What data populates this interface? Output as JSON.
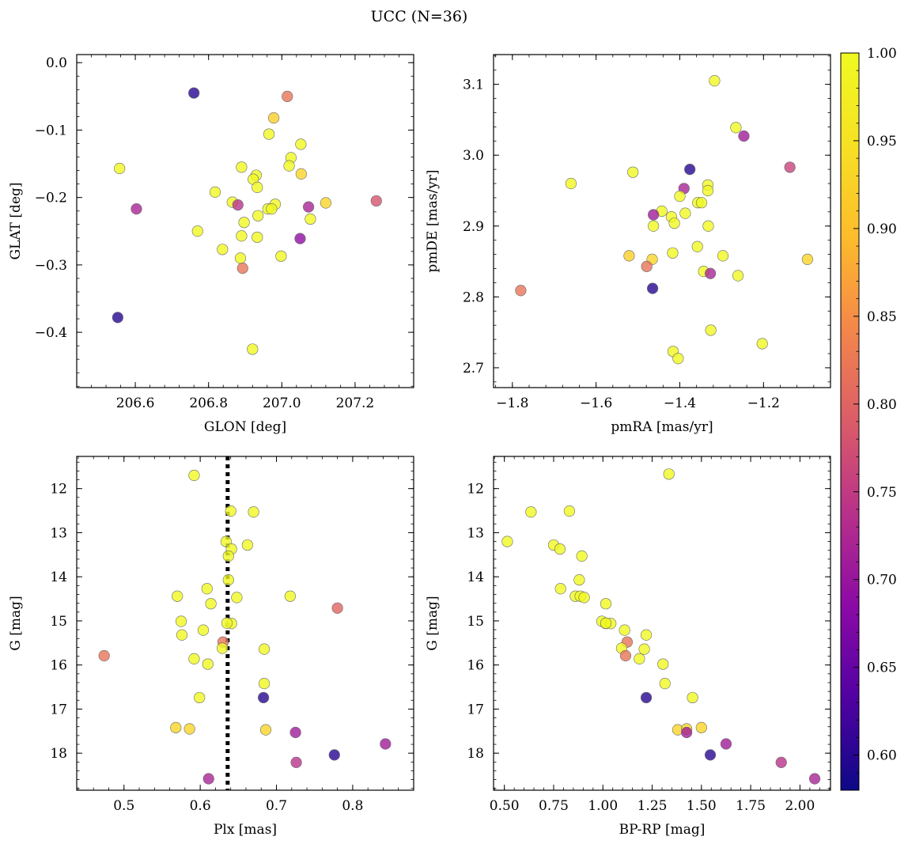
{
  "figure": {
    "title": "UCC (N=36)"
  },
  "colorbar": {
    "min": 0.58,
    "max": 1.0,
    "ticks": [
      "0.60",
      "0.65",
      "0.70",
      "0.75",
      "0.80",
      "0.85",
      "0.90",
      "0.95",
      "1.00"
    ],
    "tick_values": [
      0.6,
      0.65,
      0.7,
      0.75,
      0.8,
      0.85,
      0.9,
      0.95,
      1.0
    ],
    "colormap": "plasma"
  },
  "chart_data": [
    {
      "id": "glon-glat",
      "type": "scatter",
      "xlabel": "GLON [deg]",
      "ylabel": "GLAT [deg]",
      "xlim": [
        206.44,
        207.36
      ],
      "ylim": [
        -0.482,
        0.012
      ],
      "xticks": [
        206.6,
        206.8,
        207.0,
        207.2
      ],
      "xtick_labels": [
        "206.6",
        "206.8",
        "207.0",
        "207.2"
      ],
      "yticks": [
        0.0,
        -0.1,
        -0.2,
        -0.3,
        -0.4
      ],
      "ytick_labels": [
        "0.0",
        "−0.1",
        "−0.2",
        "−0.3",
        "−0.4"
      ],
      "points": [
        {
          "x": 206.76,
          "y": -0.045,
          "c": 0.6
        },
        {
          "x": 207.015,
          "y": -0.05,
          "c": 0.82
        },
        {
          "x": 206.978,
          "y": -0.082,
          "c": 0.92
        },
        {
          "x": 206.965,
          "y": -0.106,
          "c": 1.0
        },
        {
          "x": 207.052,
          "y": -0.121,
          "c": 1.0
        },
        {
          "x": 207.025,
          "y": -0.141,
          "c": 1.0
        },
        {
          "x": 207.02,
          "y": -0.153,
          "c": 1.0
        },
        {
          "x": 206.89,
          "y": -0.155,
          "c": 1.0
        },
        {
          "x": 206.557,
          "y": -0.157,
          "c": 1.0
        },
        {
          "x": 207.053,
          "y": -0.165,
          "c": 0.93
        },
        {
          "x": 206.93,
          "y": -0.167,
          "c": 1.0
        },
        {
          "x": 206.922,
          "y": -0.173,
          "c": 1.0
        },
        {
          "x": 206.933,
          "y": -0.185,
          "c": 1.0
        },
        {
          "x": 206.818,
          "y": -0.192,
          "c": 1.0
        },
        {
          "x": 206.865,
          "y": -0.207,
          "c": 1.0
        },
        {
          "x": 206.88,
          "y": -0.211,
          "c": 0.74
        },
        {
          "x": 207.12,
          "y": -0.208,
          "c": 0.93
        },
        {
          "x": 207.258,
          "y": -0.205,
          "c": 0.78
        },
        {
          "x": 206.982,
          "y": -0.21,
          "c": 1.0
        },
        {
          "x": 206.603,
          "y": -0.217,
          "c": 0.72
        },
        {
          "x": 206.962,
          "y": -0.217,
          "c": 1.0
        },
        {
          "x": 206.972,
          "y": -0.217,
          "c": 1.0
        },
        {
          "x": 207.073,
          "y": -0.214,
          "c": 0.72
        },
        {
          "x": 206.935,
          "y": -0.227,
          "c": 1.0
        },
        {
          "x": 207.078,
          "y": -0.232,
          "c": 1.0
        },
        {
          "x": 206.897,
          "y": -0.237,
          "c": 1.0
        },
        {
          "x": 206.77,
          "y": -0.25,
          "c": 1.0
        },
        {
          "x": 206.89,
          "y": -0.257,
          "c": 1.0
        },
        {
          "x": 206.933,
          "y": -0.259,
          "c": 1.0
        },
        {
          "x": 207.05,
          "y": -0.261,
          "c": 0.69
        },
        {
          "x": 206.838,
          "y": -0.277,
          "c": 1.0
        },
        {
          "x": 206.998,
          "y": -0.287,
          "c": 1.0
        },
        {
          "x": 206.887,
          "y": -0.29,
          "c": 1.0
        },
        {
          "x": 206.893,
          "y": -0.305,
          "c": 0.82
        },
        {
          "x": 206.552,
          "y": -0.378,
          "c": 0.6
        },
        {
          "x": 206.92,
          "y": -0.425,
          "c": 1.0
        }
      ]
    },
    {
      "id": "pmra-pmde",
      "type": "scatter",
      "xlabel": "pmRA [mas/yr]",
      "ylabel": "pmDE [mas/yr]",
      "xlim": [
        -1.845,
        -1.04
      ],
      "ylim": [
        2.672,
        3.142
      ],
      "xticks": [
        -1.8,
        -1.6,
        -1.4,
        -1.2
      ],
      "xtick_labels": [
        "−1.8",
        "−1.6",
        "−1.4",
        "−1.2"
      ],
      "yticks": [
        2.7,
        2.8,
        2.9,
        3.0,
        3.1
      ],
      "ytick_labels": [
        "2.7",
        "2.8",
        "2.9",
        "3.0",
        "3.1"
      ],
      "points": [
        {
          "x": -1.317,
          "y": 3.105,
          "c": 1.0
        },
        {
          "x": -1.266,
          "y": 3.039,
          "c": 1.0
        },
        {
          "x": -1.247,
          "y": 3.027,
          "c": 0.71
        },
        {
          "x": -1.137,
          "y": 2.983,
          "c": 0.76
        },
        {
          "x": -1.376,
          "y": 2.98,
          "c": 0.6
        },
        {
          "x": -1.512,
          "y": 2.976,
          "c": 1.0
        },
        {
          "x": -1.66,
          "y": 2.96,
          "c": 1.0
        },
        {
          "x": -1.333,
          "y": 2.958,
          "c": 1.0
        },
        {
          "x": -1.39,
          "y": 2.953,
          "c": 0.72
        },
        {
          "x": -1.333,
          "y": 2.95,
          "c": 1.0
        },
        {
          "x": -1.4,
          "y": 2.942,
          "c": 1.0
        },
        {
          "x": -1.357,
          "y": 2.933,
          "c": 1.0
        },
        {
          "x": -1.348,
          "y": 2.933,
          "c": 1.0
        },
        {
          "x": -1.443,
          "y": 2.921,
          "c": 1.0
        },
        {
          "x": -1.387,
          "y": 2.918,
          "c": 1.0
        },
        {
          "x": -1.463,
          "y": 2.916,
          "c": 0.71
        },
        {
          "x": -1.42,
          "y": 2.913,
          "c": 1.0
        },
        {
          "x": -1.413,
          "y": 2.904,
          "c": 1.0
        },
        {
          "x": -1.463,
          "y": 2.9,
          "c": 1.0
        },
        {
          "x": -1.332,
          "y": 2.9,
          "c": 1.0
        },
        {
          "x": -1.358,
          "y": 2.871,
          "c": 1.0
        },
        {
          "x": -1.417,
          "y": 2.862,
          "c": 1.0
        },
        {
          "x": -1.521,
          "y": 2.858,
          "c": 0.92
        },
        {
          "x": -1.297,
          "y": 2.858,
          "c": 1.0
        },
        {
          "x": -1.466,
          "y": 2.853,
          "c": 0.93
        },
        {
          "x": -1.095,
          "y": 2.853,
          "c": 0.93
        },
        {
          "x": -1.479,
          "y": 2.843,
          "c": 0.82
        },
        {
          "x": -1.343,
          "y": 2.836,
          "c": 1.0
        },
        {
          "x": -1.327,
          "y": 2.833,
          "c": 0.72
        },
        {
          "x": -1.261,
          "y": 2.83,
          "c": 1.0
        },
        {
          "x": -1.465,
          "y": 2.812,
          "c": 0.6
        },
        {
          "x": -1.78,
          "y": 2.809,
          "c": 0.82
        },
        {
          "x": -1.326,
          "y": 2.753,
          "c": 1.0
        },
        {
          "x": -1.203,
          "y": 2.734,
          "c": 1.0
        },
        {
          "x": -1.416,
          "y": 2.723,
          "c": 1.0
        },
        {
          "x": -1.404,
          "y": 2.713,
          "c": 1.0
        }
      ]
    },
    {
      "id": "plx-g",
      "type": "scatter",
      "xlabel": "Plx [mas]",
      "ylabel": "G [mag]",
      "xlim": [
        0.438,
        0.88
      ],
      "ylim": [
        18.84,
        11.27
      ],
      "xticks": [
        0.5,
        0.6,
        0.7,
        0.8
      ],
      "xtick_labels": [
        "0.5",
        "0.6",
        "0.7",
        "0.8"
      ],
      "yticks": [
        12,
        13,
        14,
        15,
        16,
        17,
        18
      ],
      "ytick_labels": [
        "12",
        "13",
        "14",
        "15",
        "16",
        "17",
        "18"
      ],
      "vline": 0.636,
      "points": [
        {
          "x": 0.592,
          "y": 11.7,
          "c": 1.0
        },
        {
          "x": 0.64,
          "y": 12.51,
          "c": 1.0
        },
        {
          "x": 0.67,
          "y": 12.53,
          "c": 1.0
        },
        {
          "x": 0.634,
          "y": 13.2,
          "c": 1.0
        },
        {
          "x": 0.662,
          "y": 13.28,
          "c": 1.0
        },
        {
          "x": 0.641,
          "y": 13.37,
          "c": 1.0
        },
        {
          "x": 0.637,
          "y": 13.53,
          "c": 1.0
        },
        {
          "x": 0.637,
          "y": 14.07,
          "c": 1.0
        },
        {
          "x": 0.609,
          "y": 14.27,
          "c": 1.0
        },
        {
          "x": 0.57,
          "y": 14.44,
          "c": 1.0
        },
        {
          "x": 0.718,
          "y": 14.44,
          "c": 1.0
        },
        {
          "x": 0.648,
          "y": 14.47,
          "c": 1.0
        },
        {
          "x": 0.614,
          "y": 14.61,
          "c": 1.0
        },
        {
          "x": 0.78,
          "y": 14.71,
          "c": 0.8
        },
        {
          "x": 0.575,
          "y": 15.01,
          "c": 1.0
        },
        {
          "x": 0.641,
          "y": 15.06,
          "c": 1.0
        },
        {
          "x": 0.604,
          "y": 15.21,
          "c": 1.0
        },
        {
          "x": 0.576,
          "y": 15.32,
          "c": 1.0
        },
        {
          "x": 0.63,
          "y": 15.48,
          "c": 0.82
        },
        {
          "x": 0.629,
          "y": 15.62,
          "c": 1.0
        },
        {
          "x": 0.684,
          "y": 15.64,
          "c": 1.0
        },
        {
          "x": 0.474,
          "y": 15.79,
          "c": 0.82
        },
        {
          "x": 0.592,
          "y": 15.86,
          "c": 1.0
        },
        {
          "x": 0.61,
          "y": 15.98,
          "c": 1.0
        },
        {
          "x": 0.684,
          "y": 16.42,
          "c": 1.0
        },
        {
          "x": 0.599,
          "y": 16.74,
          "c": 1.0
        },
        {
          "x": 0.683,
          "y": 16.74,
          "c": 0.6
        },
        {
          "x": 0.568,
          "y": 17.42,
          "c": 0.93
        },
        {
          "x": 0.586,
          "y": 17.45,
          "c": 0.93
        },
        {
          "x": 0.686,
          "y": 17.47,
          "c": 0.93
        },
        {
          "x": 0.725,
          "y": 17.53,
          "c": 0.71
        },
        {
          "x": 0.843,
          "y": 17.79,
          "c": 0.71
        },
        {
          "x": 0.776,
          "y": 18.04,
          "c": 0.6
        },
        {
          "x": 0.726,
          "y": 18.21,
          "c": 0.74
        },
        {
          "x": 0.611,
          "y": 18.58,
          "c": 0.72
        },
        {
          "x": 0.635,
          "y": 15.05,
          "c": 1.0
        }
      ]
    },
    {
      "id": "bprp-g",
      "type": "scatter",
      "xlabel": "BP-RP [mag]",
      "ylabel": "G [mag]",
      "xlim": [
        0.445,
        2.155
      ],
      "ylim": [
        18.84,
        11.27
      ],
      "xticks": [
        0.5,
        0.75,
        1.0,
        1.25,
        1.5,
        1.75,
        2.0
      ],
      "xtick_labels": [
        "0.50",
        "0.75",
        "1.00",
        "1.25",
        "1.50",
        "1.75",
        "2.00"
      ],
      "yticks": [
        12,
        13,
        14,
        15,
        16,
        17,
        18
      ],
      "ytick_labels": [
        "12",
        "13",
        "14",
        "15",
        "16",
        "17",
        "18"
      ],
      "points": [
        {
          "x": 1.335,
          "y": 11.67,
          "c": 1.0
        },
        {
          "x": 0.635,
          "y": 12.53,
          "c": 1.0
        },
        {
          "x": 0.83,
          "y": 12.51,
          "c": 1.0
        },
        {
          "x": 0.515,
          "y": 13.2,
          "c": 1.0
        },
        {
          "x": 0.75,
          "y": 13.28,
          "c": 1.0
        },
        {
          "x": 0.782,
          "y": 13.37,
          "c": 1.0
        },
        {
          "x": 0.893,
          "y": 13.53,
          "c": 1.0
        },
        {
          "x": 0.88,
          "y": 14.07,
          "c": 1.0
        },
        {
          "x": 0.785,
          "y": 14.27,
          "c": 1.0
        },
        {
          "x": 0.86,
          "y": 14.44,
          "c": 1.0
        },
        {
          "x": 0.885,
          "y": 14.44,
          "c": 1.0
        },
        {
          "x": 0.905,
          "y": 14.47,
          "c": 1.0
        },
        {
          "x": 1.015,
          "y": 14.61,
          "c": 1.0
        },
        {
          "x": 0.995,
          "y": 15.01,
          "c": 1.0
        },
        {
          "x": 1.015,
          "y": 15.06,
          "c": 1.0
        },
        {
          "x": 1.04,
          "y": 15.06,
          "c": 1.0
        },
        {
          "x": 1.11,
          "y": 15.21,
          "c": 1.0
        },
        {
          "x": 1.22,
          "y": 15.32,
          "c": 1.0
        },
        {
          "x": 1.123,
          "y": 15.48,
          "c": 0.82
        },
        {
          "x": 1.095,
          "y": 15.62,
          "c": 1.0
        },
        {
          "x": 1.21,
          "y": 15.64,
          "c": 1.0
        },
        {
          "x": 1.115,
          "y": 15.79,
          "c": 0.82
        },
        {
          "x": 1.185,
          "y": 15.86,
          "c": 1.0
        },
        {
          "x": 1.305,
          "y": 15.98,
          "c": 1.0
        },
        {
          "x": 1.315,
          "y": 16.42,
          "c": 1.0
        },
        {
          "x": 1.22,
          "y": 16.74,
          "c": 0.6
        },
        {
          "x": 1.455,
          "y": 16.74,
          "c": 1.0
        },
        {
          "x": 1.38,
          "y": 17.47,
          "c": 0.93
        },
        {
          "x": 1.425,
          "y": 17.45,
          "c": 0.93
        },
        {
          "x": 1.5,
          "y": 17.42,
          "c": 0.93
        },
        {
          "x": 1.425,
          "y": 17.53,
          "c": 0.71
        },
        {
          "x": 1.625,
          "y": 17.79,
          "c": 0.71
        },
        {
          "x": 1.545,
          "y": 18.04,
          "c": 0.6
        },
        {
          "x": 1.905,
          "y": 18.21,
          "c": 0.74
        },
        {
          "x": 2.075,
          "y": 18.58,
          "c": 0.72
        },
        {
          "x": 1.015,
          "y": 15.05,
          "c": 1.0
        }
      ]
    }
  ]
}
